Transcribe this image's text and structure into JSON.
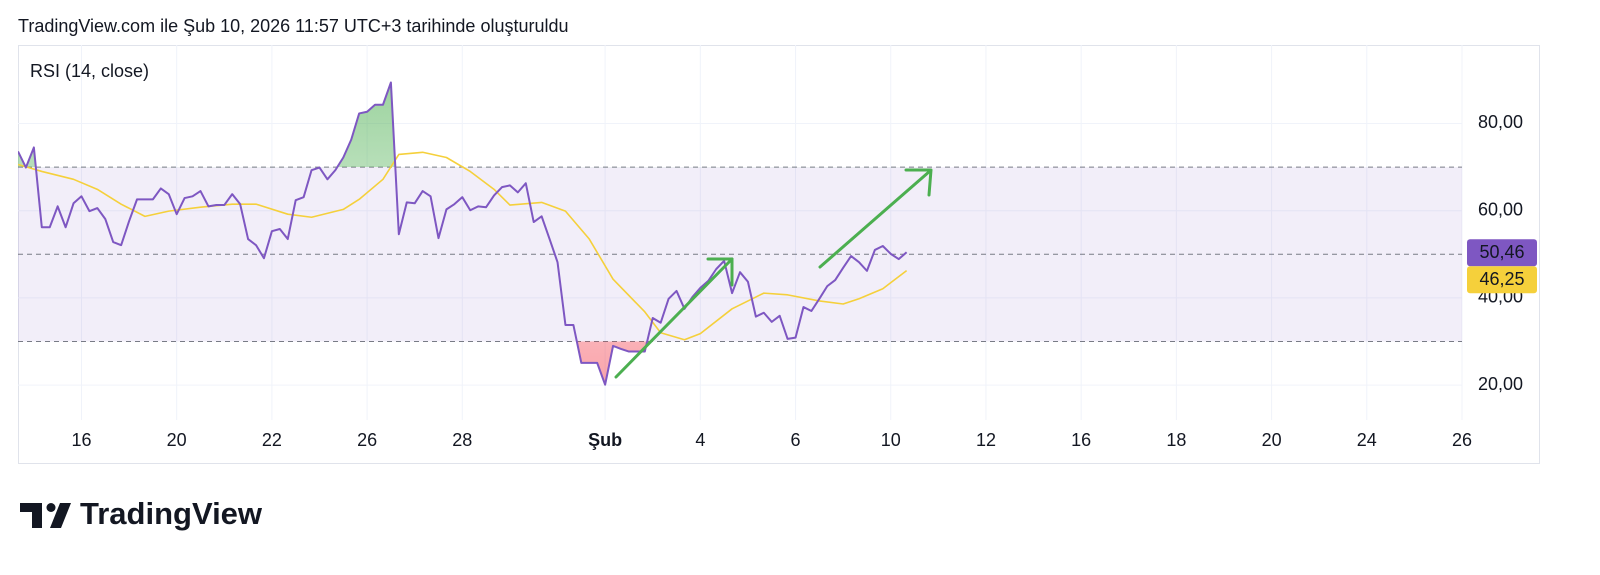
{
  "header": {
    "text": "TradingView.com ile Şub 10, 2026 11:57 UTC+3 tarihinde oluşturuldu"
  },
  "chart_data": {
    "type": "line",
    "title": "RSI (14, close)",
    "xlim": [
      -8,
      174
    ],
    "xticks": [
      {
        "value": 0,
        "label": "16"
      },
      {
        "value": 12,
        "label": "20"
      },
      {
        "value": 24,
        "label": "22"
      },
      {
        "value": 36,
        "label": "26"
      },
      {
        "value": 48,
        "label": "28"
      },
      {
        "value": 66,
        "label": "Şub"
      },
      {
        "value": 78,
        "label": "4"
      },
      {
        "value": 90,
        "label": "6"
      },
      {
        "value": 102,
        "label": "10"
      },
      {
        "value": 114,
        "label": "12"
      },
      {
        "value": 126,
        "label": "16"
      },
      {
        "value": 138,
        "label": "18"
      },
      {
        "value": 150,
        "label": "20"
      },
      {
        "value": 162,
        "label": "24"
      },
      {
        "value": 174,
        "label": "26"
      }
    ],
    "ylim": [
      12,
      98
    ],
    "yticks": [
      {
        "value": 80,
        "label": "80,00"
      },
      {
        "value": 60,
        "label": "60,00"
      },
      {
        "value": 40,
        "label": "40,00"
      },
      {
        "value": 20,
        "label": "20,00"
      }
    ],
    "bands": {
      "upper": 70,
      "middle": 50,
      "lower": 30
    },
    "band_color": "#7e57c2",
    "grid": true,
    "series": [
      {
        "color": "#7e57c2",
        "x": [
          -8,
          -7,
          -6,
          -5,
          -4,
          -3,
          -2,
          -1,
          0,
          1,
          2,
          3,
          4,
          5,
          6,
          7,
          8,
          9,
          10,
          11,
          12,
          13,
          14,
          15,
          16,
          17,
          18,
          19,
          20,
          21,
          22,
          23,
          24,
          25,
          26,
          27,
          28,
          29,
          30,
          31,
          32,
          33,
          34,
          35,
          36,
          37,
          38,
          39,
          40,
          41,
          42,
          43,
          44,
          45,
          46,
          47,
          48,
          49,
          50,
          51,
          52,
          53,
          54,
          55,
          56,
          57,
          58,
          59,
          60,
          61,
          62,
          63,
          64,
          65,
          66,
          67,
          68,
          69,
          70,
          71,
          72,
          73,
          74,
          75,
          76,
          77,
          78,
          79,
          80,
          81,
          82,
          83,
          84,
          85,
          86,
          87,
          88,
          89,
          90,
          91,
          92,
          93,
          94,
          95,
          96,
          97,
          98,
          99,
          100,
          101,
          102,
          103,
          104
        ],
        "values": [
          73.6,
          69.9,
          74.5,
          56.2,
          56.2,
          61.0,
          56.2,
          61.7,
          63.3,
          59.9,
          60.6,
          58.1,
          52.8,
          52.1,
          57.6,
          62.6,
          62.6,
          62.6,
          65.1,
          63.8,
          59.2,
          62.9,
          63.3,
          64.5,
          61.0,
          61.3,
          61.3,
          63.8,
          61.5,
          53.5,
          52.1,
          49.1,
          55.3,
          55.8,
          53.5,
          62.4,
          63.1,
          69.3,
          69.9,
          67.2,
          69.3,
          72.2,
          76.3,
          82.3,
          82.7,
          84.3,
          84.3,
          89.4,
          54.6,
          61.9,
          61.7,
          64.5,
          63.3,
          53.7,
          60.3,
          61.5,
          63.1,
          60.1,
          61.0,
          60.8,
          63.5,
          65.4,
          65.8,
          64.2,
          66.3,
          57.4,
          58.7,
          53.5,
          48.2,
          33.8,
          33.8,
          25.1,
          25.1,
          25.1,
          20.1,
          29.0,
          28.3,
          27.7,
          27.7,
          27.7,
          35.4,
          34.3,
          39.8,
          41.6,
          37.5,
          40.2,
          42.3,
          43.9,
          46.6,
          48.5,
          41.1,
          45.9,
          43.7,
          35.7,
          36.6,
          34.5,
          35.9,
          30.6,
          30.9,
          37.9,
          37.0,
          39.8,
          42.7,
          44.1,
          46.9,
          49.6,
          48.2,
          46.2,
          51.0,
          51.9,
          50.1,
          48.9,
          50.46
        ],
        "last_label": "50,46"
      },
      {
        "color": "#f5d03b",
        "x": [
          -8,
          -5,
          -1,
          2,
          5,
          8,
          11,
          15,
          19,
          22,
          26,
          29,
          33,
          35,
          38,
          40,
          43,
          46,
          49,
          52,
          54,
          58,
          61,
          64,
          67,
          71,
          73,
          76,
          78,
          82,
          86,
          89,
          93,
          96,
          98,
          101,
          104
        ],
        "values": [
          70.6,
          69.0,
          67.2,
          64.9,
          61.5,
          58.7,
          59.9,
          60.8,
          61.5,
          61.5,
          59.2,
          58.5,
          60.3,
          62.6,
          67.2,
          72.9,
          73.4,
          72.2,
          69.0,
          64.9,
          61.3,
          61.9,
          59.9,
          53.5,
          44.3,
          36.8,
          32.0,
          30.4,
          31.8,
          37.5,
          41.1,
          40.7,
          39.3,
          38.6,
          39.8,
          42.1,
          46.25
        ],
        "last_label": "46,25"
      }
    ]
  },
  "footer": {
    "logo": "TradingView"
  }
}
